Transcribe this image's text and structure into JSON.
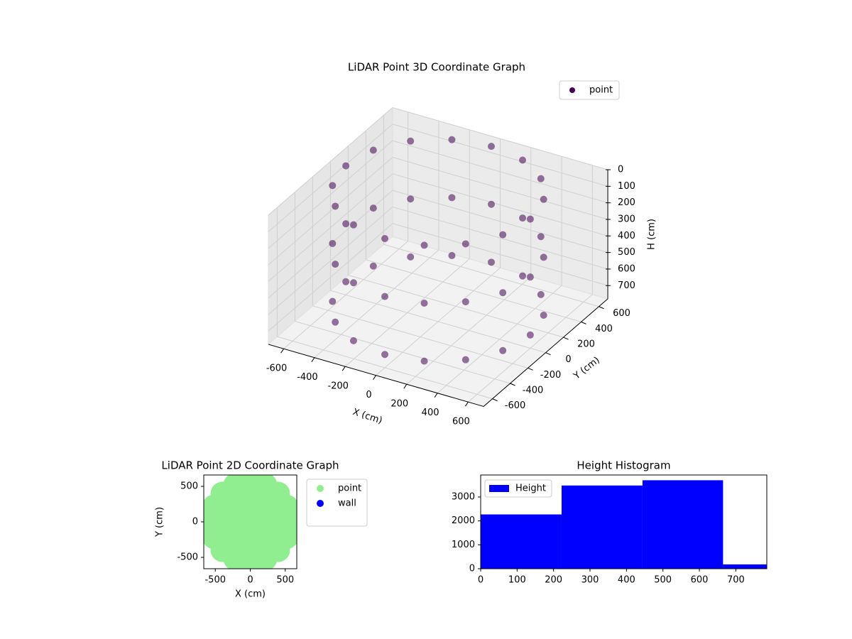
{
  "chart_data": [
    {
      "type": "scatter3d",
      "title": "LiDAR Point 3D Coordinate Graph",
      "xlabel": "X (cm)",
      "ylabel": "Y (cm)",
      "zlabel": "H (cm)",
      "xlim": [
        -700,
        700
      ],
      "ylim": [
        -700,
        700
      ],
      "zlim": [
        0,
        780
      ],
      "zinvert": true,
      "xticks": [
        -600,
        -400,
        -200,
        0,
        200,
        400,
        600
      ],
      "yticks": [
        -600,
        -400,
        -200,
        0,
        200,
        400,
        600
      ],
      "zticks": [
        0,
        100,
        200,
        300,
        400,
        500,
        600,
        700
      ],
      "grid": true,
      "legend": "upper right",
      "series": [
        {
          "name": "point",
          "color": "#440154",
          "x": [
            600,
            554,
            424,
            230,
            0,
            -230,
            -424,
            -554,
            -600,
            -554,
            -424,
            -230,
            0,
            230,
            424,
            554,
            600,
            554,
            424,
            230,
            0,
            -230,
            -424,
            -554,
            -600,
            -554,
            -424,
            -230,
            0,
            230,
            424,
            554,
            600,
            554,
            424,
            230,
            0,
            -230,
            -424,
            -554,
            -600,
            -554,
            -424,
            -230,
            0,
            230,
            424,
            554
          ],
          "y": [
            0,
            230,
            424,
            554,
            600,
            554,
            424,
            230,
            0,
            -230,
            -424,
            -554,
            -600,
            -554,
            -424,
            -230,
            0,
            230,
            424,
            554,
            600,
            554,
            424,
            230,
            0,
            -230,
            -424,
            -554,
            -600,
            -554,
            -424,
            -230,
            0,
            230,
            424,
            554,
            600,
            554,
            424,
            230,
            0,
            -230,
            -424,
            -554,
            -600,
            -554,
            -424,
            -230
          ],
          "h": [
            0,
            0,
            0,
            0,
            0,
            0,
            0,
            0,
            0,
            0,
            0,
            0,
            0,
            0,
            0,
            0,
            350,
            350,
            350,
            350,
            350,
            350,
            350,
            350,
            350,
            350,
            350,
            350,
            350,
            350,
            350,
            350,
            700,
            700,
            700,
            700,
            700,
            700,
            700,
            700,
            700,
            700,
            700,
            700,
            700,
            700,
            700,
            700
          ]
        }
      ]
    },
    {
      "type": "scatter",
      "title": "LiDAR Point 2D Coordinate Graph",
      "xlabel": "X (cm)",
      "ylabel": "Y (cm)",
      "xlim": [
        -665,
        665
      ],
      "ylim": [
        -660,
        660
      ],
      "xticks": [
        -500,
        0,
        500
      ],
      "yticks": [
        -500,
        0,
        500
      ],
      "legend": "outside right",
      "series": [
        {
          "name": "point",
          "color": "#90ee90",
          "x": [
            560,
            517,
            396,
            214,
            0,
            -214,
            -396,
            -517,
            -560,
            -517,
            -396,
            -214,
            0,
            214,
            396,
            517,
            300,
            212,
            0,
            -212,
            -300,
            -212,
            0,
            212,
            0
          ],
          "y": [
            0,
            214,
            396,
            517,
            560,
            517,
            396,
            214,
            0,
            -214,
            -396,
            -517,
            -560,
            -517,
            -396,
            -214,
            0,
            212,
            300,
            212,
            0,
            -212,
            -300,
            -212,
            0
          ]
        },
        {
          "name": "wall",
          "color": "#0000ff",
          "x": [],
          "y": []
        }
      ]
    },
    {
      "type": "histogram",
      "title": "Height Histogram",
      "name": "Height",
      "color": "#0000ff",
      "bins": [
        0,
        222,
        444,
        665,
        785
      ],
      "values": [
        2270,
        3480,
        3700,
        180
      ],
      "xlim": [
        0,
        785
      ],
      "ylim": [
        0,
        3920
      ],
      "xticks": [
        0,
        100,
        200,
        300,
        400,
        500,
        600,
        700
      ],
      "yticks": [
        0,
        1000,
        2000,
        3000
      ],
      "legend": "upper left"
    }
  ]
}
